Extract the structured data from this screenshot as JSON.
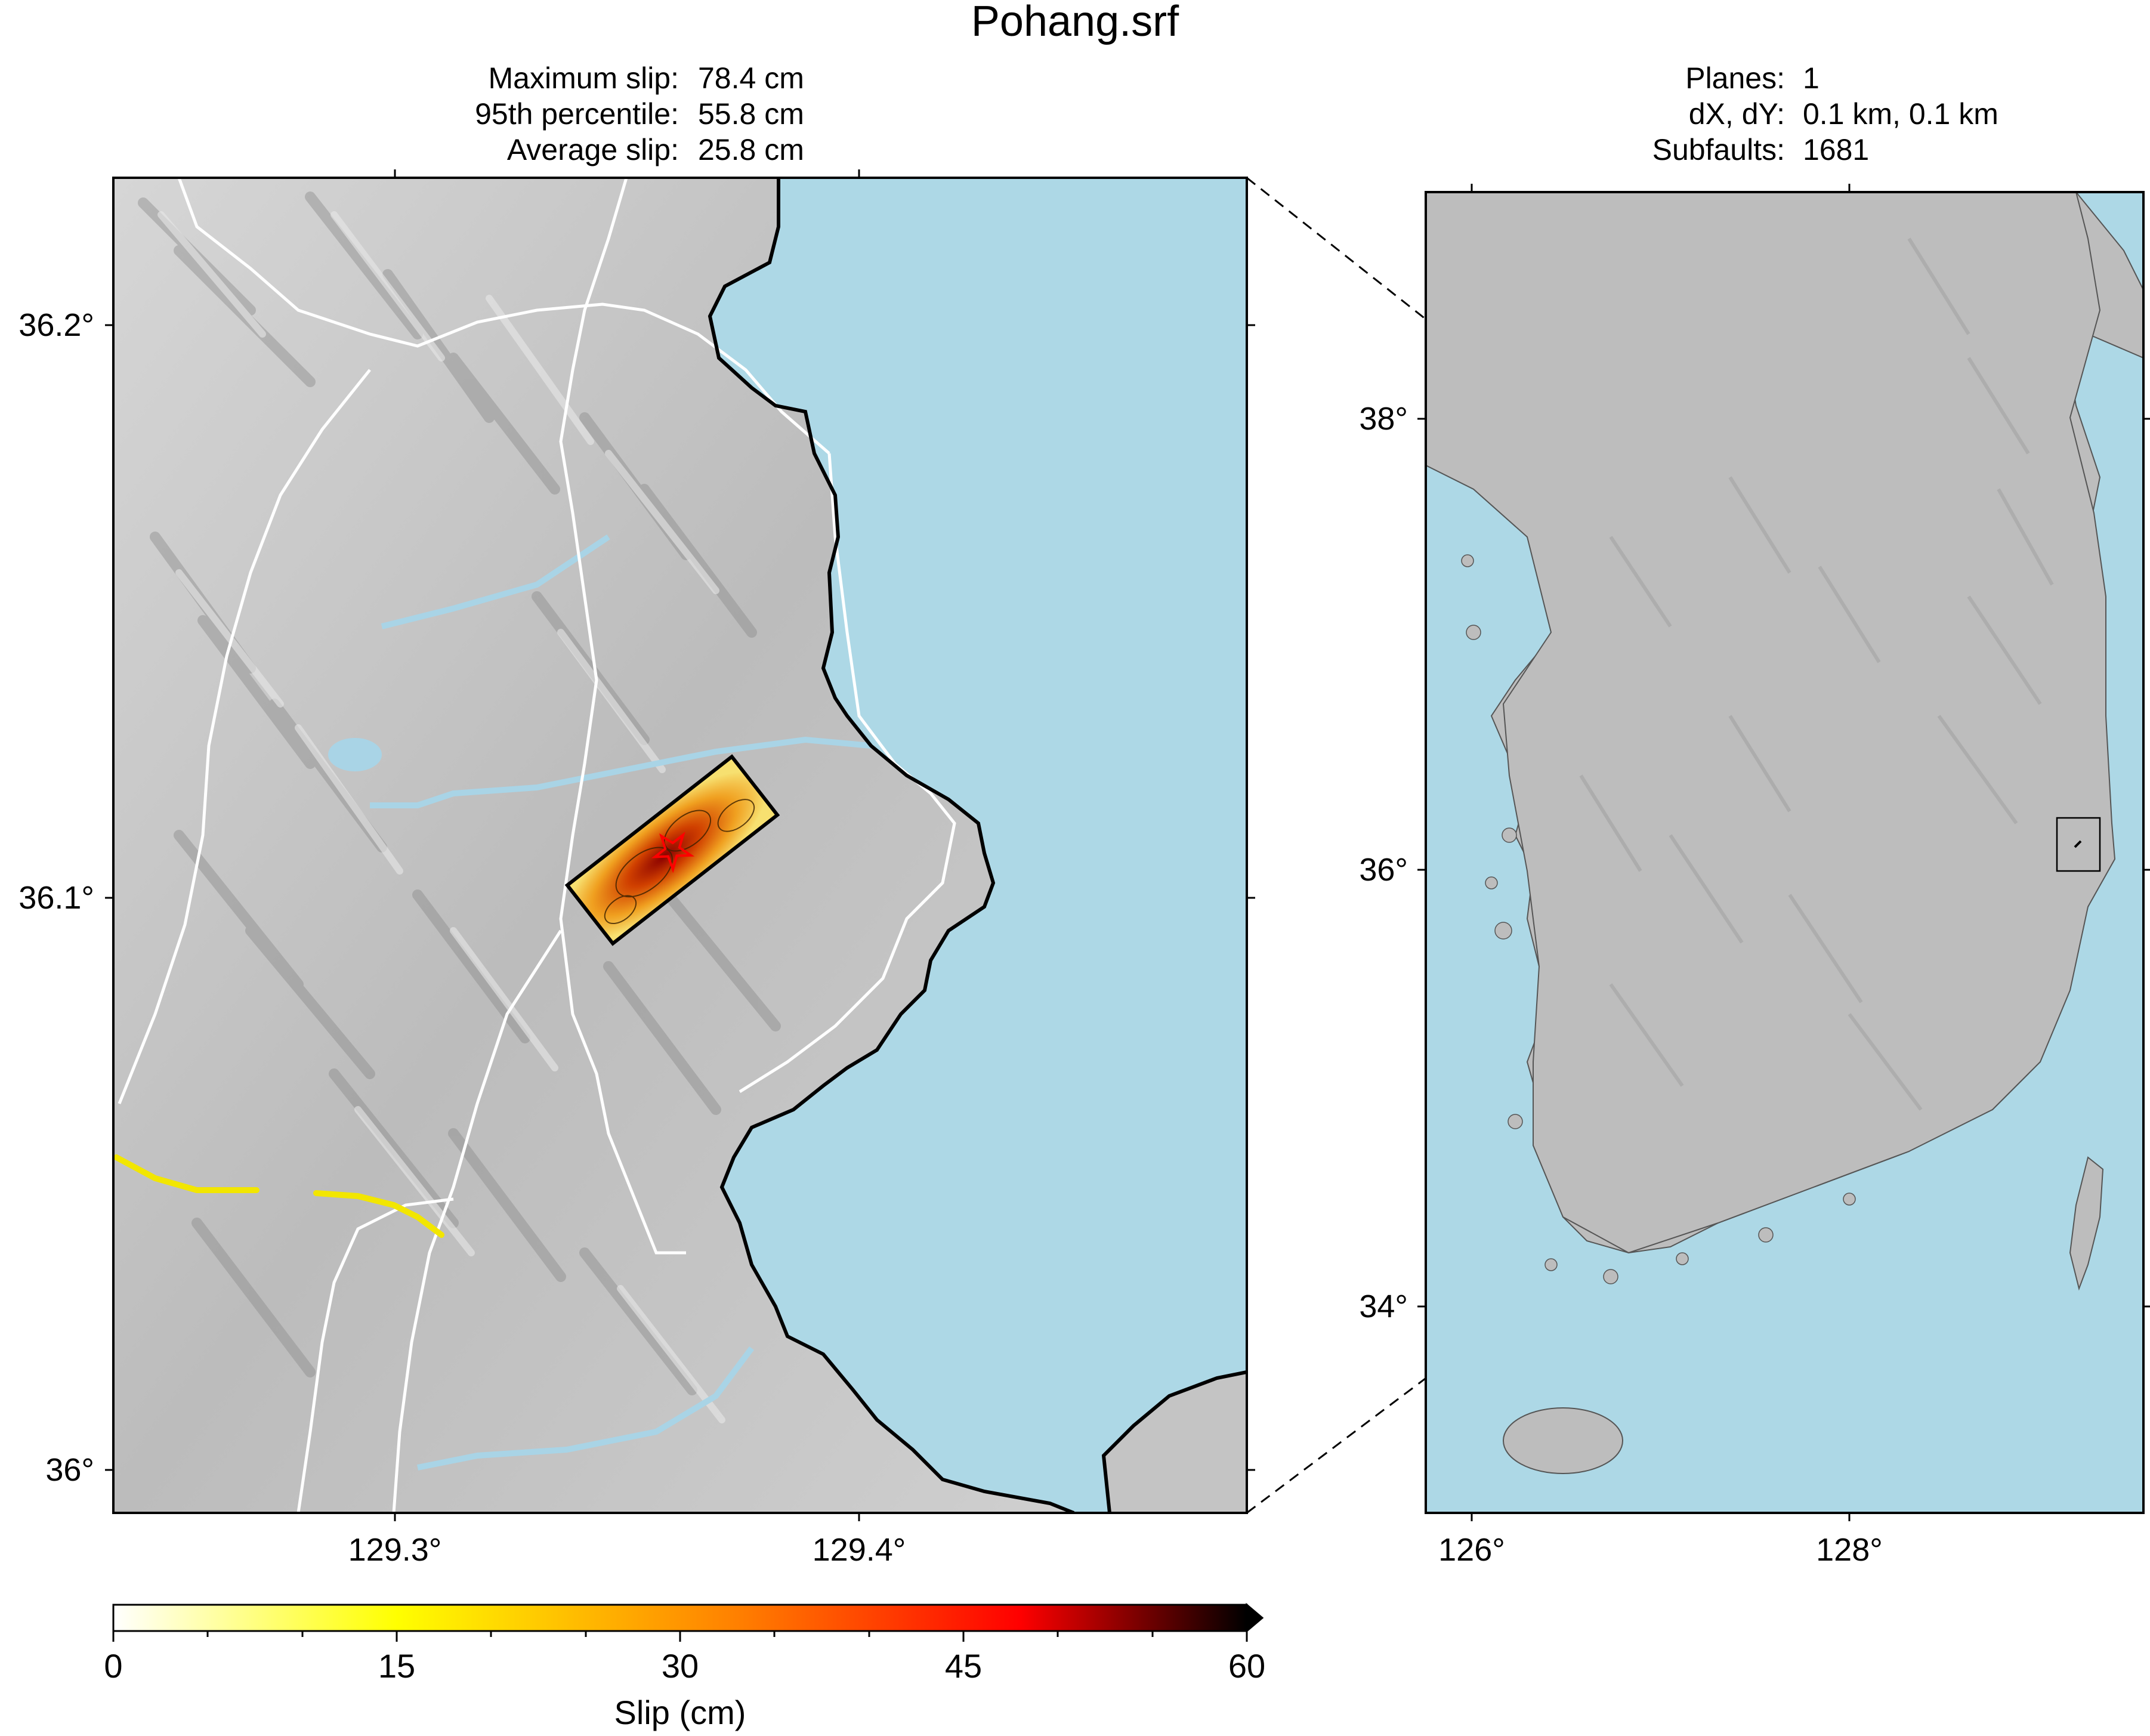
{
  "title": "Pohang.srf",
  "stats_left": [
    {
      "label": "Maximum slip:",
      "value": "78.4 cm"
    },
    {
      "label": "95th percentile:",
      "value": "55.8 cm"
    },
    {
      "label": "Average slip:",
      "value": "25.8 cm"
    }
  ],
  "stats_right": [
    {
      "label": "Planes:",
      "value": "1"
    },
    {
      "label": "dX, dY:",
      "value": "0.1 km, 0.1 km"
    },
    {
      "label": "Subfaults:",
      "value": "1681"
    }
  ],
  "detail_map": {
    "lat_ticks": [
      "36.2°",
      "36.1°",
      "36°"
    ],
    "lon_ticks": [
      "129.3°",
      "129.4°"
    ],
    "colors": {
      "sea": "#add8e6",
      "land": "#c8c8c8",
      "roads": "#ffffff",
      "highway": "#f2e600",
      "coastline": "#000000"
    }
  },
  "overview_map": {
    "lat_ticks": [
      "38°",
      "36°",
      "34°"
    ],
    "lon_ticks": [
      "126°",
      "128°"
    ],
    "colors": {
      "sea": "#add8e6",
      "land": "#bdbdbd"
    }
  },
  "colorbar": {
    "label": "Slip (cm)",
    "ticks": [
      "0",
      "15",
      "30",
      "45",
      "60"
    ],
    "min": 0,
    "max": 60,
    "colormap": [
      "#ffffff",
      "#ffff00",
      "#ff8000",
      "#ff0000",
      "#000000"
    ]
  }
}
